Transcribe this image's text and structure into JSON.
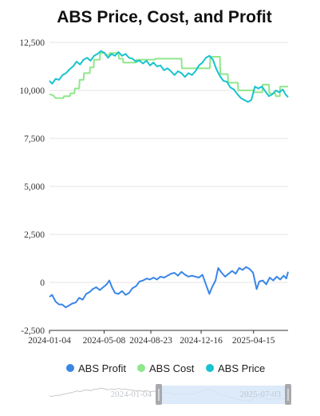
{
  "chart_data": {
    "type": "line",
    "title": "ABS Price, Cost, and Profit",
    "xlabel": "",
    "ylabel": "",
    "x_range": [
      "2024-01-04",
      "2025-07-03"
    ],
    "ylim": [
      -2500,
      12500
    ],
    "yticks": [
      -2500,
      0,
      2500,
      5000,
      7500,
      10000,
      12500
    ],
    "ytick_labels": [
      "-2,500",
      "0",
      "2,500",
      "5,000",
      "7,500",
      "10,000",
      "12,500"
    ],
    "xtick_labels": [
      "2024-01-04",
      "2024-05-08",
      "2024-08-23",
      "2024-12-16",
      "2025-04-15"
    ],
    "grid": "horizontal",
    "legend_position": "bottom",
    "series": [
      {
        "name": "ABS Profit",
        "color": "#3a86e8",
        "points": [
          [
            "2024-01-04",
            -750
          ],
          [
            "2024-01-10",
            -650
          ],
          [
            "2024-01-18",
            -1000
          ],
          [
            "2024-01-26",
            -1150
          ],
          [
            "2024-02-02",
            -1150
          ],
          [
            "2024-02-10",
            -1300
          ],
          [
            "2024-02-18",
            -1200
          ],
          [
            "2024-02-25",
            -1100
          ],
          [
            "2024-03-04",
            -1050
          ],
          [
            "2024-03-12",
            -800
          ],
          [
            "2024-03-20",
            -900
          ],
          [
            "2024-03-28",
            -600
          ],
          [
            "2024-04-05",
            -500
          ],
          [
            "2024-04-12",
            -350
          ],
          [
            "2024-04-20",
            -250
          ],
          [
            "2024-04-28",
            -400
          ],
          [
            "2024-05-06",
            -250
          ],
          [
            "2024-05-14",
            -100
          ],
          [
            "2024-05-20",
            100
          ],
          [
            "2024-05-26",
            -250
          ],
          [
            "2024-06-02",
            -550
          ],
          [
            "2024-06-10",
            -600
          ],
          [
            "2024-06-18",
            -450
          ],
          [
            "2024-06-26",
            -650
          ],
          [
            "2024-07-04",
            -550
          ],
          [
            "2024-07-12",
            -300
          ],
          [
            "2024-07-20",
            -200
          ],
          [
            "2024-07-28",
            50
          ],
          [
            "2024-08-05",
            100
          ],
          [
            "2024-08-13",
            200
          ],
          [
            "2024-08-21",
            150
          ],
          [
            "2024-08-29",
            250
          ],
          [
            "2024-09-06",
            150
          ],
          [
            "2024-09-14",
            300
          ],
          [
            "2024-09-22",
            250
          ],
          [
            "2024-09-30",
            350
          ],
          [
            "2024-10-08",
            450
          ],
          [
            "2024-10-16",
            500
          ],
          [
            "2024-10-24",
            350
          ],
          [
            "2024-11-01",
            550
          ],
          [
            "2024-11-09",
            400
          ],
          [
            "2024-11-17",
            300
          ],
          [
            "2024-11-25",
            350
          ],
          [
            "2024-12-03",
            300
          ],
          [
            "2024-12-11",
            250
          ],
          [
            "2024-12-19",
            400
          ],
          [
            "2024-12-27",
            -100
          ],
          [
            "2025-01-04",
            -600
          ],
          [
            "2025-01-10",
            -250
          ],
          [
            "2025-01-18",
            100
          ],
          [
            "2025-01-24",
            750
          ],
          [
            "2025-02-01",
            500
          ],
          [
            "2025-02-09",
            300
          ],
          [
            "2025-02-17",
            450
          ],
          [
            "2025-02-25",
            600
          ],
          [
            "2025-03-05",
            450
          ],
          [
            "2025-03-13",
            750
          ],
          [
            "2025-03-21",
            650
          ],
          [
            "2025-03-29",
            800
          ],
          [
            "2025-04-06",
            700
          ],
          [
            "2025-04-14",
            500
          ],
          [
            "2025-04-22",
            -350
          ],
          [
            "2025-04-28",
            50
          ],
          [
            "2025-05-06",
            100
          ],
          [
            "2025-05-14",
            -100
          ],
          [
            "2025-05-22",
            250
          ],
          [
            "2025-05-30",
            100
          ],
          [
            "2025-06-07",
            300
          ],
          [
            "2025-06-15",
            150
          ],
          [
            "2025-06-23",
            350
          ],
          [
            "2025-06-29",
            200
          ],
          [
            "2025-07-03",
            550
          ]
        ]
      },
      {
        "name": "ABS Cost",
        "color": "#90e68c",
        "points": [
          [
            "2024-01-04",
            9800
          ],
          [
            "2024-01-12",
            9750
          ],
          [
            "2024-01-18",
            9600
          ],
          [
            "2024-02-05",
            9600
          ],
          [
            "2024-02-06",
            9700
          ],
          [
            "2024-02-20",
            9700
          ],
          [
            "2024-02-21",
            9850
          ],
          [
            "2024-03-01",
            9850
          ],
          [
            "2024-03-02",
            10100
          ],
          [
            "2024-03-12",
            10100
          ],
          [
            "2024-03-13",
            10550
          ],
          [
            "2024-03-22",
            10550
          ],
          [
            "2024-03-23",
            10900
          ],
          [
            "2024-04-05",
            10900
          ],
          [
            "2024-04-06",
            11200
          ],
          [
            "2024-04-14",
            11200
          ],
          [
            "2024-04-15",
            11600
          ],
          [
            "2024-04-28",
            11600
          ],
          [
            "2024-04-29",
            11950
          ],
          [
            "2024-05-10",
            11950
          ],
          [
            "2024-05-11",
            11850
          ],
          [
            "2024-05-20",
            11850
          ],
          [
            "2024-05-21",
            11950
          ],
          [
            "2024-06-10",
            11950
          ],
          [
            "2024-06-11",
            11650
          ],
          [
            "2024-06-20",
            11650
          ],
          [
            "2024-06-21",
            11450
          ],
          [
            "2024-07-20",
            11450
          ],
          [
            "2024-07-21",
            11600
          ],
          [
            "2024-09-01",
            11600
          ],
          [
            "2024-09-02",
            11650
          ],
          [
            "2024-11-01",
            11650
          ],
          [
            "2024-11-02",
            11150
          ],
          [
            "2025-01-05",
            11150
          ],
          [
            "2025-01-06",
            11750
          ],
          [
            "2025-01-28",
            11750
          ],
          [
            "2025-01-29",
            10850
          ],
          [
            "2025-02-15",
            10850
          ],
          [
            "2025-02-16",
            10400
          ],
          [
            "2025-03-10",
            10400
          ],
          [
            "2025-03-11",
            10000
          ],
          [
            "2025-04-14",
            10000
          ],
          [
            "2025-04-15",
            9900
          ],
          [
            "2025-05-05",
            9900
          ],
          [
            "2025-05-06",
            10300
          ],
          [
            "2025-05-20",
            10300
          ],
          [
            "2025-05-21",
            9850
          ],
          [
            "2025-06-04",
            9850
          ],
          [
            "2025-06-05",
            9700
          ],
          [
            "2025-06-14",
            9700
          ],
          [
            "2025-06-15",
            10200
          ],
          [
            "2025-07-03",
            10200
          ]
        ]
      },
      {
        "name": "ABS Price",
        "color": "#17c3cf",
        "points": [
          [
            "2024-01-04",
            10500
          ],
          [
            "2024-01-10",
            10350
          ],
          [
            "2024-01-18",
            10600
          ],
          [
            "2024-01-26",
            10550
          ],
          [
            "2024-02-03",
            10800
          ],
          [
            "2024-02-11",
            10900
          ],
          [
            "2024-02-19",
            11100
          ],
          [
            "2024-02-27",
            11250
          ],
          [
            "2024-03-06",
            11500
          ],
          [
            "2024-03-14",
            11350
          ],
          [
            "2024-03-22",
            11600
          ],
          [
            "2024-03-30",
            11700
          ],
          [
            "2024-04-07",
            11550
          ],
          [
            "2024-04-15",
            11800
          ],
          [
            "2024-04-23",
            11900
          ],
          [
            "2024-05-01",
            12050
          ],
          [
            "2024-05-09",
            11950
          ],
          [
            "2024-05-17",
            11700
          ],
          [
            "2024-05-25",
            11900
          ],
          [
            "2024-06-02",
            11800
          ],
          [
            "2024-06-10",
            12000
          ],
          [
            "2024-06-18",
            11800
          ],
          [
            "2024-06-26",
            11900
          ],
          [
            "2024-07-04",
            11700
          ],
          [
            "2024-07-12",
            11650
          ],
          [
            "2024-07-20",
            11500
          ],
          [
            "2024-07-28",
            11550
          ],
          [
            "2024-08-05",
            11400
          ],
          [
            "2024-08-13",
            11550
          ],
          [
            "2024-08-21",
            11300
          ],
          [
            "2024-08-29",
            11450
          ],
          [
            "2024-09-06",
            11250
          ],
          [
            "2024-09-14",
            11300
          ],
          [
            "2024-09-22",
            11050
          ],
          [
            "2024-09-30",
            11150
          ],
          [
            "2024-10-08",
            11000
          ],
          [
            "2024-10-16",
            10800
          ],
          [
            "2024-10-24",
            11000
          ],
          [
            "2024-11-01",
            10900
          ],
          [
            "2024-11-09",
            10700
          ],
          [
            "2024-11-17",
            10900
          ],
          [
            "2024-11-25",
            10800
          ],
          [
            "2024-12-03",
            11000
          ],
          [
            "2024-12-11",
            11300
          ],
          [
            "2024-12-19",
            11450
          ],
          [
            "2024-12-27",
            11700
          ],
          [
            "2025-01-04",
            11800
          ],
          [
            "2025-01-12",
            11600
          ],
          [
            "2025-01-20",
            11100
          ],
          [
            "2025-01-28",
            10750
          ],
          [
            "2025-02-05",
            10500
          ],
          [
            "2025-02-13",
            10450
          ],
          [
            "2025-02-21",
            10150
          ],
          [
            "2025-03-01",
            10050
          ],
          [
            "2025-03-09",
            9800
          ],
          [
            "2025-03-17",
            9600
          ],
          [
            "2025-03-25",
            9500
          ],
          [
            "2025-04-02",
            9400
          ],
          [
            "2025-04-10",
            9500
          ],
          [
            "2025-04-18",
            10200
          ],
          [
            "2025-04-26",
            10100
          ],
          [
            "2025-05-04",
            10200
          ],
          [
            "2025-05-12",
            9950
          ],
          [
            "2025-05-20",
            9700
          ],
          [
            "2025-05-28",
            9800
          ],
          [
            "2025-06-05",
            10000
          ],
          [
            "2025-06-13",
            9900
          ],
          [
            "2025-06-21",
            10050
          ],
          [
            "2025-06-27",
            9800
          ],
          [
            "2025-07-03",
            9650
          ]
        ]
      }
    ]
  },
  "data_zoom": {
    "start_label": "2024-01-04",
    "end_label": "2025-07-03"
  },
  "colors": {
    "axis": "#333333",
    "grid": "#e3e3e3",
    "slider_fill": "#d6e6f8",
    "slider_handle": "#a7a9ad",
    "slider_shadow": "#c8c8c8"
  }
}
